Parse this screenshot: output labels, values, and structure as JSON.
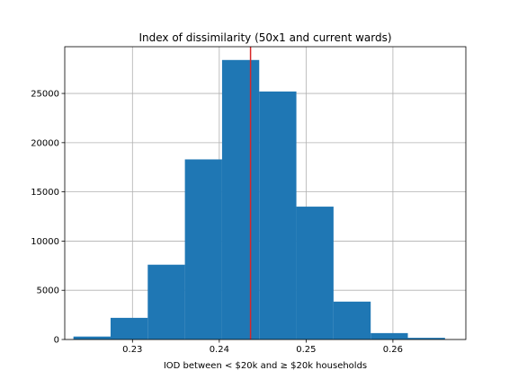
{
  "chart_data": {
    "type": "bar",
    "subtype": "histogram",
    "title": "Index of dissimilarity (50x1 and current wards)",
    "xlabel": "IOD between < $20k and ≥ $20k households",
    "ylabel": "",
    "xlim": [
      0.2222,
      0.2684
    ],
    "ylim": [
      0,
      29750
    ],
    "xticks": [
      0.23,
      0.24,
      0.25,
      0.26
    ],
    "xtick_labels": [
      "0.23",
      "0.24",
      "0.25",
      "0.26"
    ],
    "yticks": [
      0,
      5000,
      10000,
      15000,
      20000,
      25000
    ],
    "ytick_labels": [
      "0",
      "5000",
      "10000",
      "15000",
      "20000",
      "25000"
    ],
    "grid": true,
    "bin_edges": [
      0.2232,
      0.22748,
      0.23176,
      0.23604,
      0.24032,
      0.2446,
      0.24888,
      0.25316,
      0.25744,
      0.26172,
      0.266
    ],
    "counts": [
      300,
      2200,
      7600,
      18300,
      28400,
      25200,
      13500,
      3850,
      650,
      170
    ],
    "bar_color": "#1f77b4",
    "reference_line": {
      "x": 0.2436,
      "color": "#d62728"
    }
  }
}
